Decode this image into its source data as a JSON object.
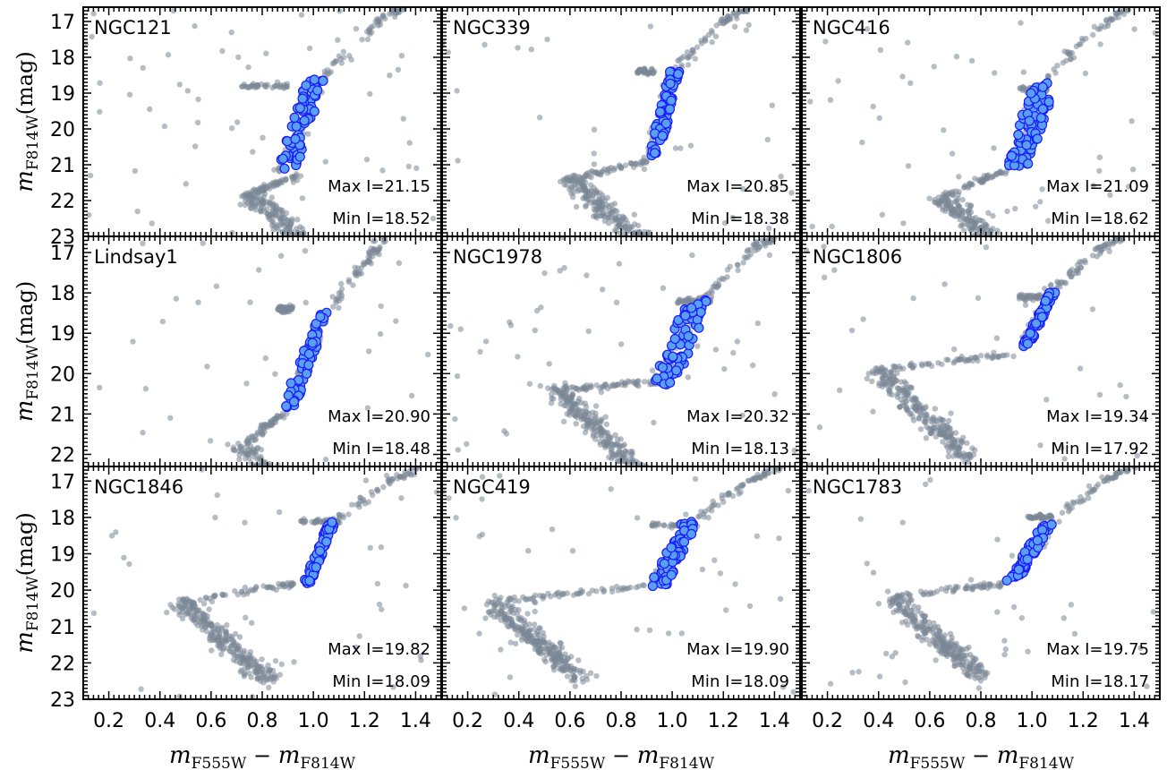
{
  "chart_data": {
    "type": "scatter",
    "xlim": [
      0.1,
      1.5
    ],
    "x_ticks": [
      "0.2",
      "0.4",
      "0.6",
      "0.8",
      "1.0",
      "1.2",
      "1.4"
    ],
    "row_ylims": [
      [
        23,
        16.6
      ],
      [
        22.3,
        16.6
      ],
      [
        23,
        16.6
      ]
    ],
    "row_y_ticks": [
      [
        "17",
        "18",
        "19",
        "20",
        "21",
        "22",
        "23"
      ],
      [
        "17",
        "18",
        "19",
        "20",
        "21",
        "22"
      ],
      [
        "17",
        "18",
        "19",
        "20",
        "21",
        "22",
        "23"
      ]
    ],
    "xlabel": {
      "main": "m",
      "sub1": "F555W",
      "sep": "−",
      "main2": "m",
      "sub2": "F814W"
    },
    "ylabel": {
      "main": "m",
      "sub": "F814W",
      "unit": "(mag)"
    },
    "grid": false,
    "colors": {
      "field": "#7a8796",
      "selected": "#5aa0f0",
      "selected_edge": "#1a1aff"
    },
    "panels": [
      {
        "name": "NGC121",
        "row": 0,
        "col": 0,
        "max_label": "Max I=21.15",
        "min_label": "Min I=18.52",
        "max_mag": 21.15,
        "min_mag": 18.52,
        "features": {
          "ms_color": 0.72,
          "to_color": 0.75,
          "to_mag": 21.8,
          "sg_color_end": 0.95,
          "sg_mag_end": 21.3,
          "rgb": [
            [
              0.86,
              21.2
            ],
            [
              1.05,
              18.5
            ],
            [
              1.25,
              17.0
            ],
            [
              1.35,
              16.6
            ]
          ],
          "rc": [
            0.72,
            0.9,
            18.8
          ],
          "field_spread": 1.0
        },
        "sel": [
          [
            0.86,
            21.15
          ],
          [
            0.95,
            21.05
          ],
          [
            1.05,
            18.52
          ],
          [
            0.97,
            18.62
          ]
        ]
      },
      {
        "name": "NGC339",
        "row": 0,
        "col": 1,
        "max_label": "Max I=20.85",
        "min_label": "Min I=18.38",
        "max_mag": 20.85,
        "min_mag": 18.38,
        "features": {
          "ms_color": 0.55,
          "to_color": 0.6,
          "to_mag": 21.4,
          "sg_color_end": 0.9,
          "sg_mag_end": 20.9,
          "rgb": [
            [
              0.9,
              20.9
            ],
            [
              1.0,
              18.4
            ],
            [
              1.2,
              17.0
            ],
            [
              1.3,
              16.6
            ]
          ],
          "rc": [
            0.86,
            0.93,
            18.4
          ],
          "field_spread": 0.6
        },
        "sel": [
          [
            0.9,
            20.85
          ],
          [
            0.95,
            20.8
          ],
          [
            1.03,
            18.38
          ],
          [
            0.99,
            18.4
          ]
        ]
      },
      {
        "name": "NGC416",
        "row": 0,
        "col": 2,
        "max_label": "Max I=21.09",
        "min_label": "Min I=18.62",
        "max_mag": 21.09,
        "min_mag": 18.62,
        "features": {
          "ms_color": 0.6,
          "to_color": 0.65,
          "to_mag": 21.9,
          "sg_color_end": 0.92,
          "sg_mag_end": 21.1,
          "rgb": [
            [
              0.92,
              21.1
            ],
            [
              1.05,
              18.6
            ],
            [
              1.25,
              17.2
            ],
            [
              1.38,
              16.6
            ]
          ],
          "rc": [
            0.95,
            1.06,
            18.9
          ],
          "field_spread": 0.9
        },
        "sel": [
          [
            0.9,
            21.09
          ],
          [
            1.0,
            21.0
          ],
          [
            1.1,
            18.62
          ],
          [
            1.0,
            18.7
          ]
        ]
      },
      {
        "name": "Lindsay1",
        "row": 1,
        "col": 0,
        "max_label": "Max I=20.90",
        "min_label": "Min I=18.48",
        "max_mag": 20.9,
        "min_mag": 18.48,
        "features": {
          "ms_color": 0.68,
          "to_color": 0.72,
          "to_mag": 21.8,
          "sg_color_end": 0.88,
          "sg_mag_end": 21.0,
          "rgb": [
            [
              0.88,
              20.9
            ],
            [
              1.05,
              18.5
            ],
            [
              1.2,
              17.3
            ],
            [
              1.28,
              16.6
            ]
          ],
          "rc": [
            0.86,
            0.92,
            18.4
          ],
          "field_spread": 0.5
        },
        "sel": [
          [
            0.87,
            20.9
          ],
          [
            0.93,
            20.85
          ],
          [
            1.06,
            18.48
          ],
          [
            1.02,
            18.52
          ]
        ]
      },
      {
        "name": "NGC1978",
        "row": 1,
        "col": 1,
        "max_label": "Max I=20.32",
        "min_label": "Min I=18.13",
        "max_mag": 20.32,
        "min_mag": 18.13,
        "features": {
          "ms_color": 0.52,
          "to_color": 0.55,
          "to_mag": 20.4,
          "sg_color_end": 0.92,
          "sg_mag_end": 20.2,
          "rgb": [
            [
              0.92,
              20.3
            ],
            [
              1.13,
              18.1
            ],
            [
              1.3,
              17.0
            ],
            [
              1.4,
              16.6
            ]
          ],
          "rc": [
            1.02,
            1.15,
            18.2
          ],
          "field_spread": 0.8
        },
        "sel": [
          [
            0.92,
            20.32
          ],
          [
            1.02,
            20.25
          ],
          [
            1.15,
            18.13
          ],
          [
            1.05,
            18.2
          ]
        ]
      },
      {
        "name": "NGC1806",
        "row": 1,
        "col": 2,
        "max_label": "Max I=19.34",
        "min_label": "Min I=17.92",
        "max_mag": 19.34,
        "min_mag": 17.92,
        "features": {
          "ms_color": 0.35,
          "to_color": 0.4,
          "to_mag": 19.9,
          "sg_color_end": 0.95,
          "sg_mag_end": 19.5,
          "rgb": [
            [
              0.96,
              19.4
            ],
            [
              1.08,
              17.9
            ],
            [
              1.25,
              17.0
            ],
            [
              1.35,
              16.6
            ]
          ],
          "rc": [
            0.95,
            1.05,
            18.1
          ],
          "field_spread": 0.5
        },
        "sel": [
          [
            0.96,
            19.34
          ],
          [
            0.99,
            19.3
          ],
          [
            1.1,
            17.92
          ],
          [
            1.07,
            17.95
          ]
        ]
      },
      {
        "name": "NGC1846",
        "row": 2,
        "col": 0,
        "max_label": "Max I=19.82",
        "min_label": "Min I=18.09",
        "max_mag": 19.82,
        "min_mag": 18.09,
        "features": {
          "ms_color": 0.45,
          "to_color": 0.48,
          "to_mag": 20.3,
          "sg_color_end": 0.95,
          "sg_mag_end": 19.8,
          "rgb": [
            [
              0.97,
              19.8
            ],
            [
              1.08,
              18.1
            ],
            [
              1.3,
              17.0
            ],
            [
              1.42,
              16.6
            ]
          ],
          "rc": [
            0.95,
            1.1,
            18.1
          ],
          "field_spread": 0.7
        },
        "sel": [
          [
            0.96,
            19.82
          ],
          [
            0.99,
            19.8
          ],
          [
            1.09,
            18.09
          ],
          [
            1.06,
            18.12
          ]
        ]
      },
      {
        "name": "NGC419",
        "row": 2,
        "col": 1,
        "max_label": "Max I=19.90",
        "min_label": "Min I=18.09",
        "max_mag": 19.9,
        "min_mag": 18.09,
        "features": {
          "ms_color": 0.25,
          "to_color": 0.3,
          "to_mag": 20.3,
          "sg_color_end": 0.9,
          "sg_mag_end": 19.9,
          "rgb": [
            [
              0.92,
              19.9
            ],
            [
              1.08,
              18.1
            ],
            [
              1.3,
              17.0
            ],
            [
              1.42,
              16.6
            ]
          ],
          "rc": [
            0.92,
            1.1,
            18.2
          ],
          "field_spread": 0.8
        },
        "sel": [
          [
            0.91,
            19.9
          ],
          [
            0.98,
            19.85
          ],
          [
            1.1,
            18.09
          ],
          [
            1.04,
            18.12
          ]
        ]
      },
      {
        "name": "NGC1783",
        "row": 2,
        "col": 2,
        "max_label": "Max I=19.75",
        "min_label": "Min I=18.17",
        "max_mag": 19.75,
        "min_mag": 18.17,
        "features": {
          "ms_color": 0.4,
          "to_color": 0.45,
          "to_mag": 20.2,
          "sg_color_end": 0.9,
          "sg_mag_end": 19.8,
          "rgb": [
            [
              0.92,
              19.75
            ],
            [
              1.07,
              18.2
            ],
            [
              1.28,
              17.0
            ],
            [
              1.4,
              16.6
            ]
          ],
          "rc": [
            0.98,
            1.08,
            18.0
          ],
          "field_spread": 0.6
        },
        "sel": [
          [
            0.9,
            19.75
          ],
          [
            0.95,
            19.72
          ],
          [
            1.08,
            18.17
          ],
          [
            1.04,
            18.2
          ]
        ]
      }
    ]
  }
}
